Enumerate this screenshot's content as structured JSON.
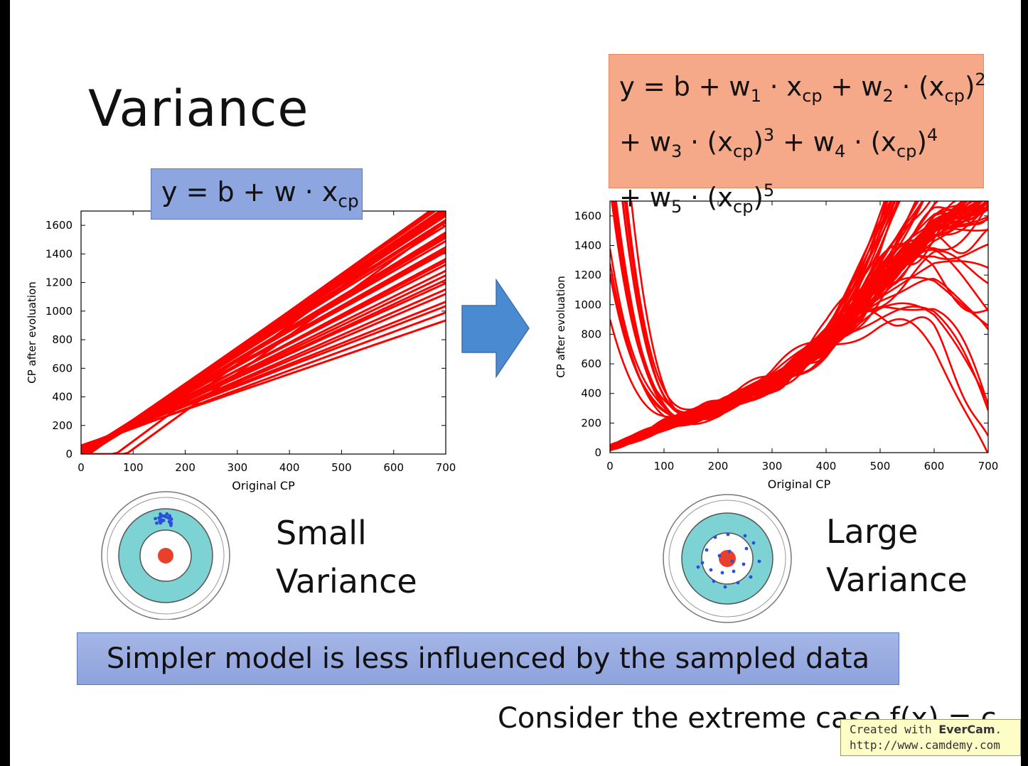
{
  "slide": {
    "title": "Variance",
    "banner_text": "Simpler model is less influenced by the sampled data",
    "footer_text": "Consider the extreme case f(x) = c",
    "watermark_line1_prefix": "Created with",
    "watermark_brand": "EverCam",
    "watermark_line2": "http://www.camdemy.com"
  },
  "equations": {
    "simple": {
      "parts": [
        "y = b + w · x",
        "cp"
      ]
    },
    "complex": {
      "line1": "y = b + w",
      "line2": "+ w",
      "line3": "+ w"
    }
  },
  "labels": {
    "left": {
      "line1": "Small",
      "line2": "Variance"
    },
    "right": {
      "line1": "Large",
      "line2": "Variance"
    }
  },
  "colors": {
    "curve": "#ff0000",
    "target_ring": "#7dd3d3",
    "bullseye": "#e8402a",
    "dots": "#2a50d8",
    "arrow": "#4a8ad0",
    "eq_simple_bg": "#8ea6e0",
    "eq_complex_bg": "#f6a988"
  },
  "chart_data": [
    {
      "type": "line",
      "title": "",
      "xlabel": "Original CP",
      "ylabel": "CP after evoluation",
      "xlim": [
        0,
        700
      ],
      "ylim": [
        0,
        1700
      ],
      "xticks": [
        0,
        100,
        200,
        300,
        400,
        500,
        600,
        700
      ],
      "yticks": [
        0,
        200,
        400,
        600,
        800,
        1000,
        1200,
        1400,
        1600
      ],
      "series_note": "many fitted linear models y = b + w*x",
      "lines": [
        {
          "b": -10,
          "w": 2.45
        },
        {
          "b": -20,
          "w": 2.55
        },
        {
          "b": -5,
          "w": 2.4
        },
        {
          "b": -30,
          "w": 2.5
        },
        {
          "b": 10,
          "w": 2.3
        },
        {
          "b": -15,
          "w": 2.35
        },
        {
          "b": 5,
          "w": 2.2
        },
        {
          "b": -25,
          "w": 2.25
        },
        {
          "b": 20,
          "w": 2.1
        },
        {
          "b": -40,
          "w": 2.6
        },
        {
          "b": 15,
          "w": 2.0
        },
        {
          "b": 0,
          "w": 1.95
        },
        {
          "b": 30,
          "w": 1.85
        },
        {
          "b": 25,
          "w": 1.75
        },
        {
          "b": 40,
          "w": 1.65
        },
        {
          "b": 35,
          "w": 1.55
        },
        {
          "b": 50,
          "w": 1.45
        },
        {
          "b": 45,
          "w": 1.35
        },
        {
          "b": 60,
          "w": 1.25
        },
        {
          "b": -180,
          "w": 2.7
        },
        {
          "b": -230,
          "w": 2.65
        },
        {
          "b": -8,
          "w": 2.48
        },
        {
          "b": -12,
          "w": 2.52
        },
        {
          "b": 2,
          "w": 2.28
        },
        {
          "b": 8,
          "w": 2.15
        },
        {
          "b": 12,
          "w": 2.05
        },
        {
          "b": 18,
          "w": 1.9
        },
        {
          "b": 22,
          "w": 1.8
        },
        {
          "b": 28,
          "w": 1.7
        },
        {
          "b": 32,
          "w": 1.6
        },
        {
          "b": 0,
          "w": 2.38
        },
        {
          "b": -3,
          "w": 2.42
        },
        {
          "b": 6,
          "w": 2.33
        },
        {
          "b": 3,
          "w": 2.18
        },
        {
          "b": 16,
          "w": 2.02
        },
        {
          "b": 55,
          "w": 1.4
        }
      ]
    },
    {
      "type": "line",
      "title": "",
      "xlabel": "Original CP",
      "ylabel": "CP after evoluation",
      "xlim": [
        0,
        700
      ],
      "ylim": [
        0,
        1700
      ],
      "xticks": [
        0,
        100,
        200,
        300,
        400,
        500,
        600,
        700
      ],
      "yticks": [
        0,
        200,
        400,
        600,
        800,
        1000,
        1200,
        1400,
        1600
      ],
      "series_note": "many fitted degree-5 polynomial models; shown as wiggling curves around a common trend",
      "trend": [
        [
          0,
          30
        ],
        [
          100,
          180
        ],
        [
          200,
          300
        ],
        [
          300,
          480
        ],
        [
          400,
          750
        ],
        [
          500,
          1150
        ],
        [
          600,
          1500
        ],
        [
          700,
          1700
        ]
      ],
      "curves": 70
    }
  ]
}
